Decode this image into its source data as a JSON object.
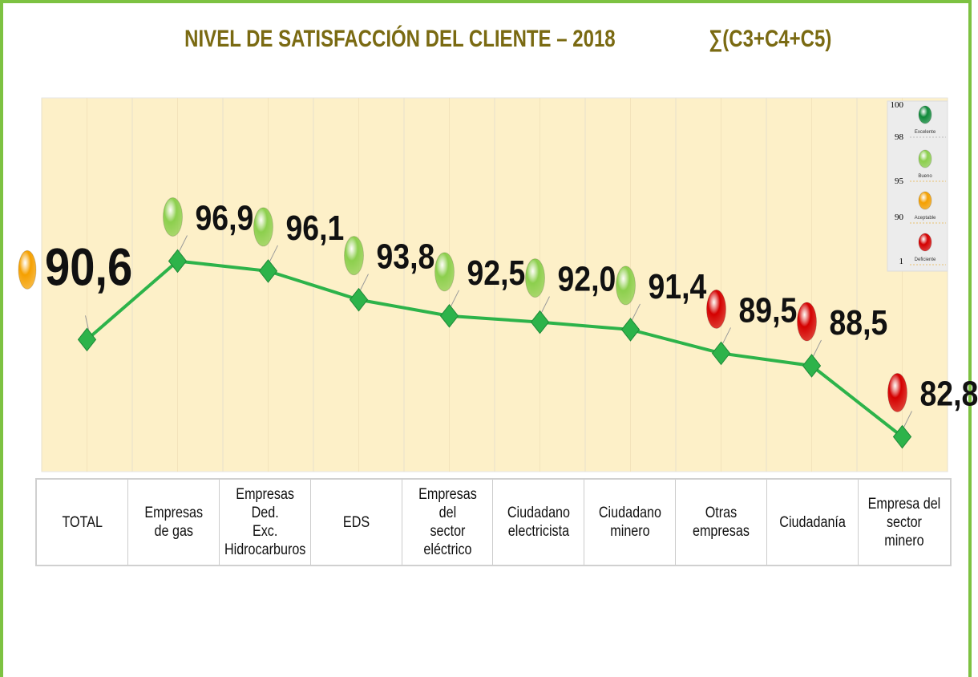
{
  "chart_data": {
    "type": "line",
    "title": "NIVEL DE SATISFACCIÓN DEL CLIENTE – 2018",
    "formula": "∑(C3+C4+C5)",
    "categories": [
      "TOTAL",
      "Empresas\nde gas",
      "Empresas Ded.\nExc.\nHidrocarburos",
      "EDS",
      "Empresas del\nsector eléctrico",
      "Ciudadano\nelectricista",
      "Ciudadano\nminero",
      "Otras empresas",
      "Ciudadanía",
      "Empresa del\nsector minero"
    ],
    "values": [
      90.6,
      96.9,
      96.1,
      93.8,
      92.5,
      92.0,
      91.4,
      89.5,
      88.5,
      82.8
    ],
    "value_labels": [
      "90,6",
      "96,9",
      "96,1",
      "93,8",
      "92,5",
      "92,0",
      "91,4",
      "89,5",
      "88,5",
      "82,8"
    ],
    "point_status_colors": [
      "#f5a000",
      "#8ccf4d",
      "#8ccf4d",
      "#8ccf4d",
      "#8ccf4d",
      "#8ccf4d",
      "#8ccf4d",
      "#d40000",
      "#d40000",
      "#d40000"
    ],
    "color": "#2db34a",
    "ylim": [
      80,
      110
    ],
    "legend": {
      "scale": [
        100,
        98,
        95,
        90,
        1
      ],
      "items": [
        {
          "label": "Excelente",
          "color": "#0f8a3a"
        },
        {
          "label": "Bueno",
          "color": "#8ccf4d"
        },
        {
          "label": "Aceptable",
          "color": "#f5a000"
        },
        {
          "label": "Deficiente",
          "color": "#d40000"
        }
      ]
    }
  }
}
